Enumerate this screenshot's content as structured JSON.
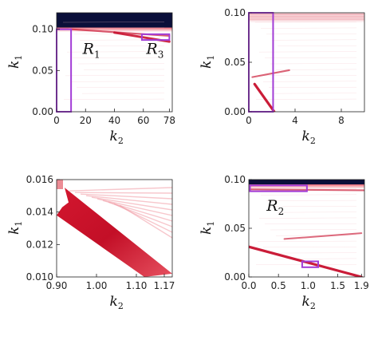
{
  "chart_data": [
    {
      "type": "heatmap",
      "panel": "top-left",
      "xlabel": "k2",
      "ylabel": "k1",
      "xlim": [
        0,
        80
      ],
      "ylim": [
        0,
        0.12
      ],
      "xticks": [
        "0",
        "20",
        "40",
        "60",
        "78"
      ],
      "xtick_values": [
        0,
        20,
        40,
        60,
        78
      ],
      "yticks": [
        "0.00",
        "0.05",
        "0.10"
      ],
      "ytick_values": [
        0,
        0.05,
        0.1
      ],
      "colors": {
        "background": "#ffffff",
        "high": "#c8102e",
        "top_band": "#0b0f3a",
        "region_box": "#a23cd6"
      },
      "top_band_k1": [
        0.102,
        0.12
      ],
      "ridges": [
        {
          "from": [
            10,
            0.1
          ],
          "to": [
            78,
            0.092
          ],
          "intensity": 0.55
        },
        {
          "from": [
            40,
            0.096
          ],
          "to": [
            78,
            0.085
          ],
          "intensity": 0.9
        }
      ],
      "regions": [
        {
          "label": "R",
          "sub": "1",
          "k2": [
            0,
            10
          ],
          "k1": [
            0,
            0.1
          ],
          "label_at": [
            18,
            0.07
          ]
        },
        {
          "label": "R",
          "sub": "3",
          "k2": [
            59,
            78
          ],
          "k1": [
            0.087,
            0.094
          ],
          "label_at": [
            62,
            0.07
          ]
        }
      ]
    },
    {
      "type": "heatmap",
      "panel": "top-right",
      "xlabel": "k2",
      "ylabel": "k1",
      "xlim": [
        0,
        10
      ],
      "ylim": [
        0,
        0.1
      ],
      "xticks": [
        "0",
        "4",
        "8"
      ],
      "xtick_values": [
        0,
        4,
        8
      ],
      "yticks": [
        "0.00",
        "0.05",
        "0.10"
      ],
      "ytick_values": [
        0,
        0.05,
        0.1
      ],
      "colors": {
        "background": "#ffffff",
        "high": "#c8102e",
        "region_box": "#a23cd6"
      },
      "top_band_k1": [
        0.092,
        0.1
      ],
      "ridges": [
        {
          "from": [
            0.5,
            0.028
          ],
          "to": [
            2.2,
            0.0
          ],
          "intensity": 1.0
        },
        {
          "from": [
            0.3,
            0.035
          ],
          "to": [
            3.5,
            0.042
          ],
          "intensity": 0.5
        }
      ],
      "regions": [
        {
          "label": "",
          "sub": "",
          "k2": [
            0,
            2.1
          ],
          "k1": [
            0,
            0.1
          ]
        }
      ]
    },
    {
      "type": "heatmap",
      "panel": "bottom-left",
      "xlabel": "k2",
      "ylabel": "k1",
      "xlim": [
        0.9,
        1.19
      ],
      "ylim": [
        0.01,
        0.016
      ],
      "xticks": [
        "0.90",
        "1.00",
        "1.10",
        "1.17"
      ],
      "xtick_values": [
        0.9,
        1.0,
        1.1,
        1.17
      ],
      "yticks": [
        "0.010",
        "0.012",
        "0.014",
        "0.016"
      ],
      "ytick_values": [
        0.01,
        0.012,
        0.014,
        0.016
      ],
      "colors": {
        "background": "#ffffff",
        "high": "#c8102e"
      },
      "band": {
        "upper_edge": [
          [
            0.92,
            0.0155
          ],
          [
            1.19,
            0.0102
          ]
        ],
        "lower_edge": [
          [
            0.9,
            0.0138
          ],
          [
            1.12,
            0.01
          ]
        ],
        "notch_at": [
          0.93,
          0.0143
        ]
      },
      "regions": []
    },
    {
      "type": "heatmap",
      "panel": "bottom-right",
      "xlabel": "k2",
      "ylabel": "k1",
      "xlim": [
        0,
        1.95
      ],
      "ylim": [
        0,
        0.1
      ],
      "xticks": [
        "0.0",
        "0.5",
        "1.0",
        "1.5",
        "1.9"
      ],
      "xtick_values": [
        0,
        0.5,
        1.0,
        1.5,
        1.9
      ],
      "yticks": [
        "0.00",
        "0.05",
        "0.10"
      ],
      "ytick_values": [
        0,
        0.05,
        0.1
      ],
      "colors": {
        "background": "#ffffff",
        "high": "#c8102e",
        "top_band": "#0b0f3a",
        "region_box": "#a23cd6"
      },
      "top_band_k1": [
        0.095,
        0.1
      ],
      "ridges": [
        {
          "from": [
            0.0,
            0.031
          ],
          "to": [
            1.9,
            0.0
          ],
          "intensity": 1.0
        },
        {
          "from": [
            0.6,
            0.039
          ],
          "to": [
            1.9,
            0.045
          ],
          "intensity": 0.45
        },
        {
          "from": [
            0.0,
            0.09
          ],
          "to": [
            1.95,
            0.089
          ],
          "intensity": 0.5
        }
      ],
      "regions": [
        {
          "label": "R",
          "sub": "2",
          "k2": [
            0.02,
            0.98
          ],
          "k1": [
            0.088,
            0.094
          ],
          "label_at": [
            0.3,
            0.068
          ]
        },
        {
          "label": "",
          "sub": "",
          "k2": [
            0.9,
            1.17
          ],
          "k1": [
            0.01,
            0.016
          ]
        }
      ]
    }
  ]
}
